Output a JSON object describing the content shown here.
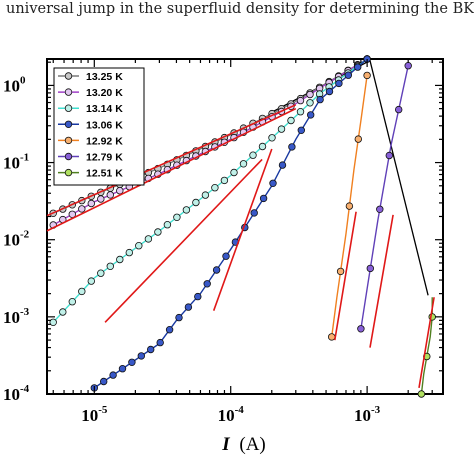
{
  "caption": "universal jump in the superfluid density for determining the BKT tra",
  "chart_data": {
    "type": "line",
    "x_scale": "log",
    "y_scale": "log",
    "xlim": [
      4.5e-06,
      0.0036
    ],
    "ylim": [
      0.0001,
      2.2
    ],
    "xlabel": {
      "symbol": "I",
      "unit": "(A)"
    },
    "ylabel": "",
    "x_ticks": [
      {
        "value": 1e-05,
        "base": "10",
        "exp": "-5"
      },
      {
        "value": 0.0001,
        "base": "10",
        "exp": "-4"
      },
      {
        "value": 0.001,
        "base": "10",
        "exp": "-3"
      }
    ],
    "y_ticks": [
      {
        "value": 1,
        "base": "10",
        "exp": "0"
      },
      {
        "value": 0.1,
        "base": "10",
        "exp": "-1"
      },
      {
        "value": 0.01,
        "base": "10",
        "exp": "-2"
      },
      {
        "value": 0.001,
        "base": "10",
        "exp": "-3"
      },
      {
        "value": 0.0001,
        "base": "10",
        "exp": "-4"
      }
    ],
    "legend_position": "top-left",
    "series": [
      {
        "name": "13.25 K",
        "line_color": "#7a7a7a",
        "marker_color": "#c8c8c8",
        "x": [
          5e-06,
          1e-05,
          3e-05,
          0.0001,
          0.0003,
          0.00045,
          0.001
        ],
        "y": [
          0.022,
          0.038,
          0.085,
          0.23,
          0.62,
          0.95,
          2.2
        ]
      },
      {
        "name": "13.20 K",
        "line_color": "#a040c8",
        "marker_color": "#e2c8f0",
        "x": [
          5e-06,
          1e-05,
          3e-05,
          0.0001,
          0.0003,
          0.00045,
          0.001
        ],
        "y": [
          0.0155,
          0.031,
          0.072,
          0.2,
          0.58,
          0.92,
          2.2
        ]
      },
      {
        "name": "13.14 K",
        "line_color": "#40e0d0",
        "marker_color": "#c0f0e8",
        "x": [
          5e-06,
          1e-05,
          3e-05,
          0.0001,
          0.0003,
          0.00045,
          0.001
        ],
        "y": [
          0.00085,
          0.0032,
          0.013,
          0.068,
          0.4,
          0.78,
          2.2
        ]
      },
      {
        "name": "13.06 K",
        "line_color": "#1838a0",
        "marker_color": "#3858c8",
        "x": [
          1e-05,
          3e-05,
          4e-05,
          6e-05,
          0.0001,
          0.0002,
          0.0003,
          0.00045,
          0.001
        ],
        "y": [
          0.00012,
          0.00045,
          0.0009,
          0.002,
          0.0075,
          0.05,
          0.2,
          0.65,
          2.2
        ]
      },
      {
        "name": "12.92 K",
        "line_color": "#f08020",
        "marker_color": "#f8b070",
        "x": [
          0.00055,
          0.0006,
          0.0007,
          0.0008,
          0.0009,
          0.001
        ],
        "y": [
          0.00055,
          0.0018,
          0.012,
          0.08,
          0.35,
          1.35
        ]
      },
      {
        "name": "12.79 K",
        "line_color": "#6040b8",
        "marker_color": "#8860d8",
        "x": [
          0.0009,
          0.001,
          0.0012,
          0.0015,
          0.002
        ],
        "y": [
          0.0007,
          0.0023,
          0.018,
          0.17,
          1.8
        ]
      },
      {
        "name": "12.51 K",
        "line_color": "#508020",
        "marker_color": "#b0e060",
        "x": [
          0.0025,
          0.0026,
          0.0029,
          0.003,
          0.003
        ],
        "y": [
          0.0001,
          0.00018,
          0.00055,
          0.001,
          0.0018
        ]
      }
    ],
    "fit_lines": {
      "color": "#e01818",
      "segments": [
        {
          "x": [
            4.5e-06,
            0.0003
          ],
          "y": [
            0.0205,
            0.56
          ]
        },
        {
          "x": [
            4.5e-06,
            0.0003
          ],
          "y": [
            0.013,
            0.5
          ]
        },
        {
          "x": [
            1.2e-05,
            0.00017
          ],
          "y": [
            0.00085,
            0.11
          ]
        },
        {
          "x": [
            7.5e-05,
            0.0002
          ],
          "y": [
            0.0012,
            0.15
          ]
        },
        {
          "x": [
            0.00058,
            0.00083
          ],
          "y": [
            0.0005,
            0.023
          ]
        },
        {
          "x": [
            0.00105,
            0.00155
          ],
          "y": [
            0.0004,
            0.021
          ]
        },
        {
          "x": [
            0.0024,
            0.0031
          ],
          "y": [
            0.00012,
            0.0018
          ]
        }
      ]
    },
    "black_line": {
      "x": [
        0.0002,
        0.00105,
        0.0028
      ],
      "y": [
        0.45,
        2.1,
        0.0019
      ]
    }
  }
}
